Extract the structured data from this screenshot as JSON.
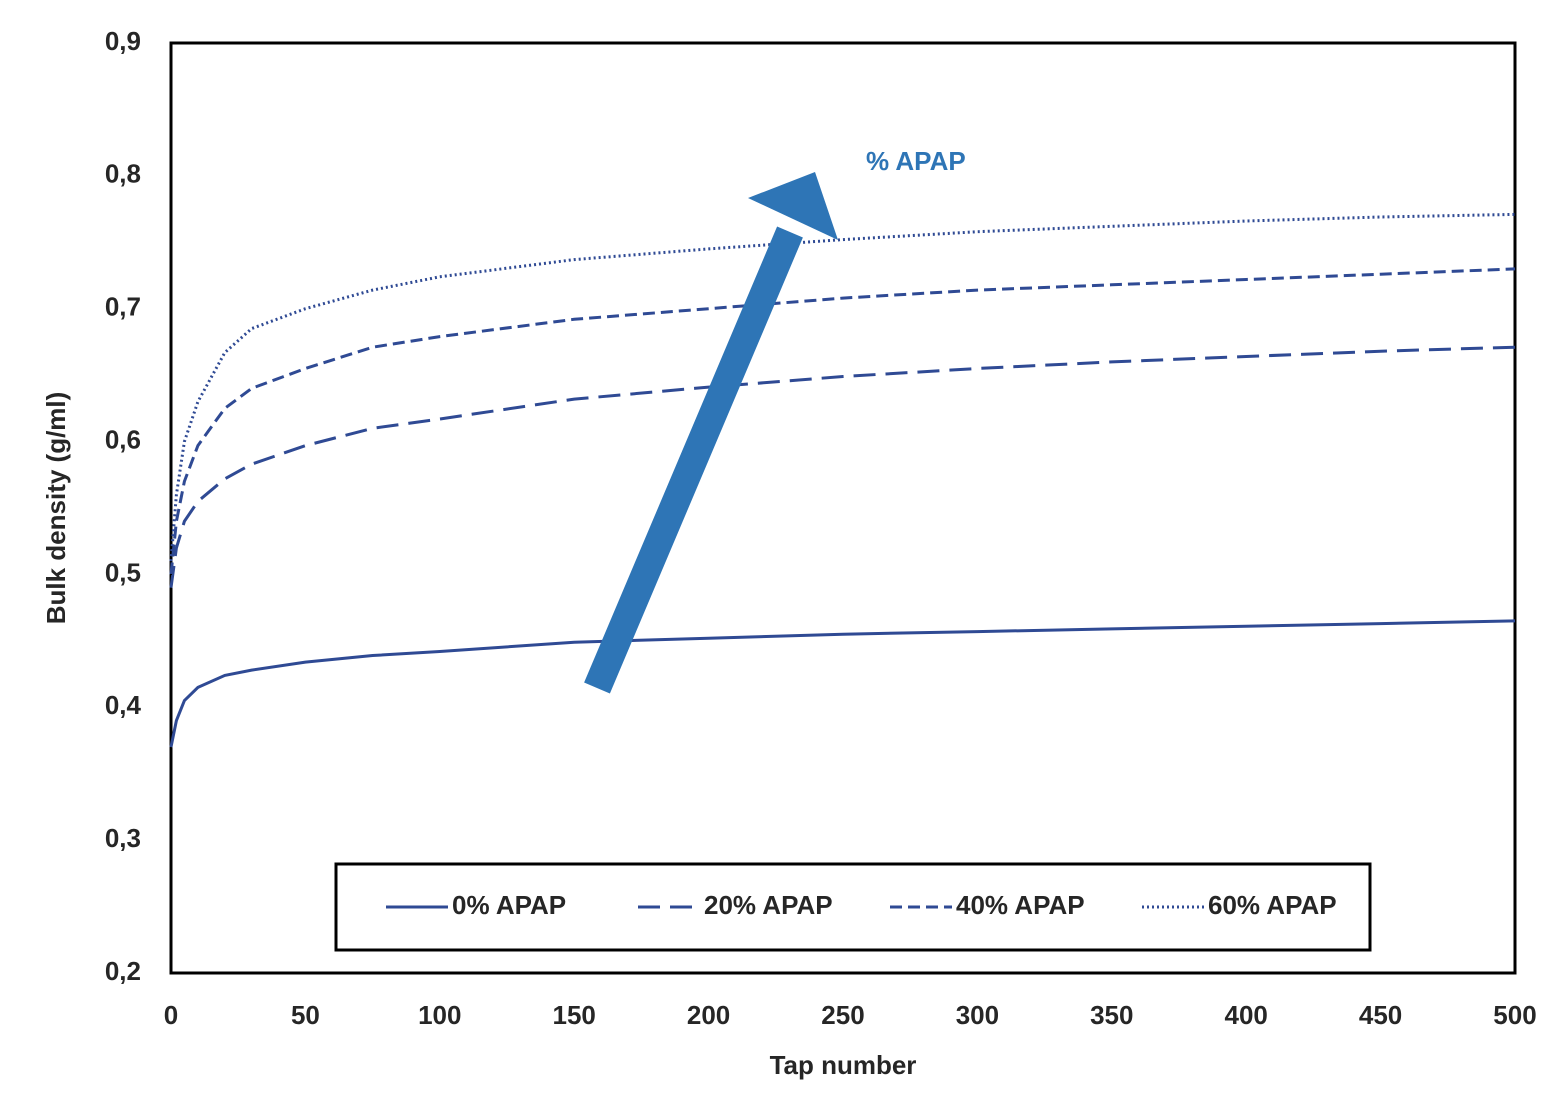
{
  "chart_data": {
    "type": "line",
    "x_label": "Tap number",
    "y_label": "Bulk density (g/ml)",
    "annotation": "% APAP",
    "x": [
      0,
      2,
      5,
      10,
      20,
      30,
      50,
      75,
      100,
      150,
      200,
      250,
      300,
      350,
      400,
      450,
      500
    ],
    "series": [
      {
        "name": "0% APAP",
        "color": "#2f4a94",
        "line_style": "solid",
        "values": [
          0.37,
          0.39,
          0.405,
          0.415,
          0.424,
          0.428,
          0.434,
          0.439,
          0.442,
          0.449,
          0.452,
          0.455,
          0.457,
          0.459,
          0.461,
          0.463,
          0.465
        ]
      },
      {
        "name": "20% APAP",
        "color": "#2f4a94",
        "line_style": "long-dash",
        "values": [
          0.49,
          0.52,
          0.54,
          0.555,
          0.572,
          0.583,
          0.597,
          0.61,
          0.617,
          0.632,
          0.641,
          0.649,
          0.655,
          0.66,
          0.664,
          0.668,
          0.671
        ]
      },
      {
        "name": "40% APAP",
        "color": "#2f4a94",
        "line_style": "dash",
        "values": [
          0.5,
          0.54,
          0.57,
          0.597,
          0.625,
          0.64,
          0.655,
          0.671,
          0.679,
          0.692,
          0.7,
          0.708,
          0.714,
          0.718,
          0.722,
          0.726,
          0.73
        ]
      },
      {
        "name": "60% APAP",
        "color": "#2f4a94",
        "line_style": "dot",
        "values": [
          0.51,
          0.56,
          0.6,
          0.63,
          0.667,
          0.685,
          0.7,
          0.714,
          0.724,
          0.737,
          0.745,
          0.752,
          0.758,
          0.762,
          0.766,
          0.769,
          0.771
        ]
      }
    ],
    "xlim": [
      0,
      500
    ],
    "xticks": [
      0,
      50,
      100,
      150,
      200,
      250,
      300,
      350,
      400,
      450,
      500
    ],
    "ylim": [
      0.2,
      0.9
    ],
    "yticks": [
      {
        "value": 0.2,
        "label": "0,2"
      },
      {
        "value": 0.3,
        "label": "0,3"
      },
      {
        "value": 0.4,
        "label": "0,4"
      },
      {
        "value": 0.5,
        "label": "0,5"
      },
      {
        "value": 0.6,
        "label": "0,6"
      },
      {
        "value": 0.7,
        "label": "0,7"
      },
      {
        "value": 0.8,
        "label": "0,8"
      },
      {
        "value": 0.9,
        "label": "0,9"
      }
    ],
    "grid": false,
    "legend_position": "bottom"
  }
}
